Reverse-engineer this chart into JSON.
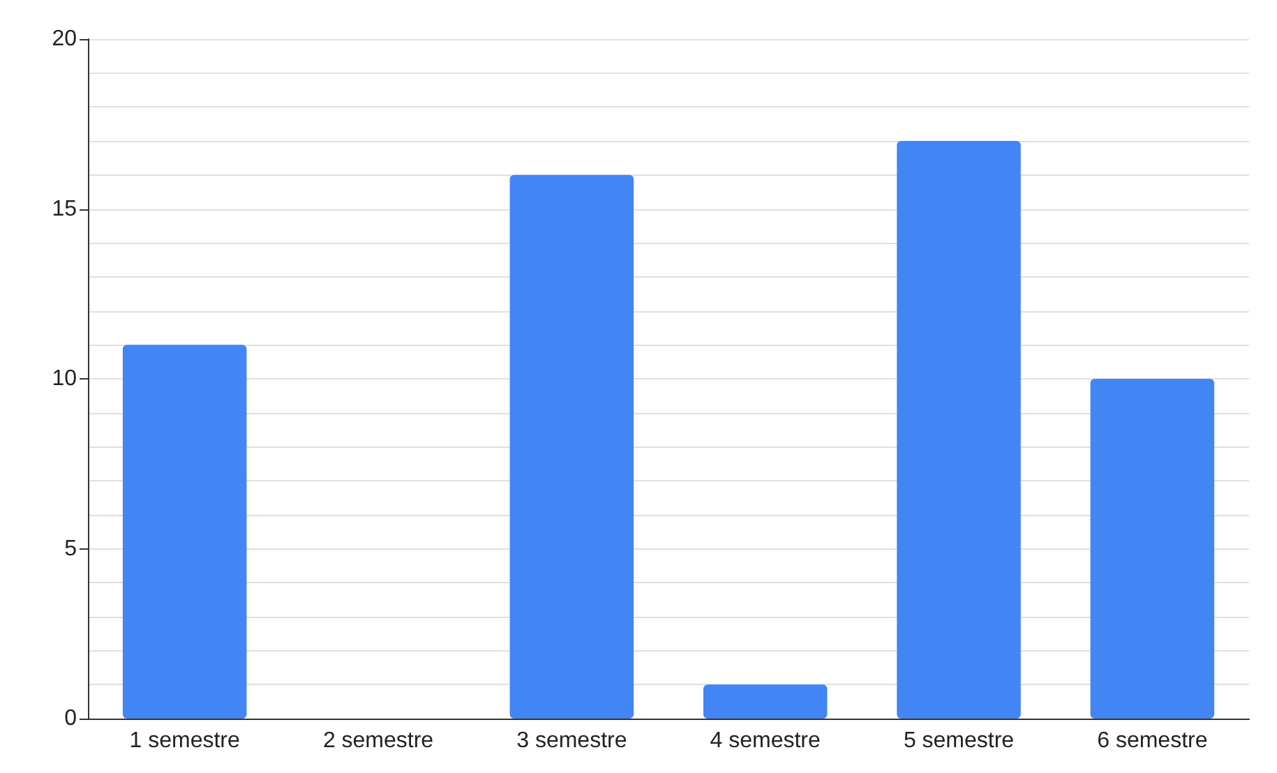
{
  "chart_data": {
    "type": "bar",
    "categories": [
      "1 semestre",
      "2 semestre",
      "3 semestre",
      "4 semestre",
      "5 semestre",
      "6 semestre"
    ],
    "values": [
      11,
      0,
      16,
      1,
      17,
      10
    ],
    "color": "#4285f4",
    "ylim": [
      0,
      20
    ],
    "yticks": [
      0,
      {
        "value": 1,
        "label": null
      },
      {
        "value": 2,
        "label": null
      },
      {
        "value": 3,
        "label": null
      },
      {
        "value": 4,
        "label": null
      },
      5,
      {
        "value": 6,
        "label": null
      },
      {
        "value": 7,
        "label": null
      },
      {
        "value": 8,
        "label": null
      },
      {
        "value": 9,
        "label": null
      },
      10,
      {
        "value": 11,
        "label": null
      },
      {
        "value": 12,
        "label": null
      },
      {
        "value": 13,
        "label": null
      },
      {
        "value": 14,
        "label": null
      },
      15,
      {
        "value": 16,
        "label": null
      },
      {
        "value": 17,
        "label": null
      },
      {
        "value": 18,
        "label": null
      },
      {
        "value": 19,
        "label": null
      },
      20
    ],
    "grid": "y"
  }
}
